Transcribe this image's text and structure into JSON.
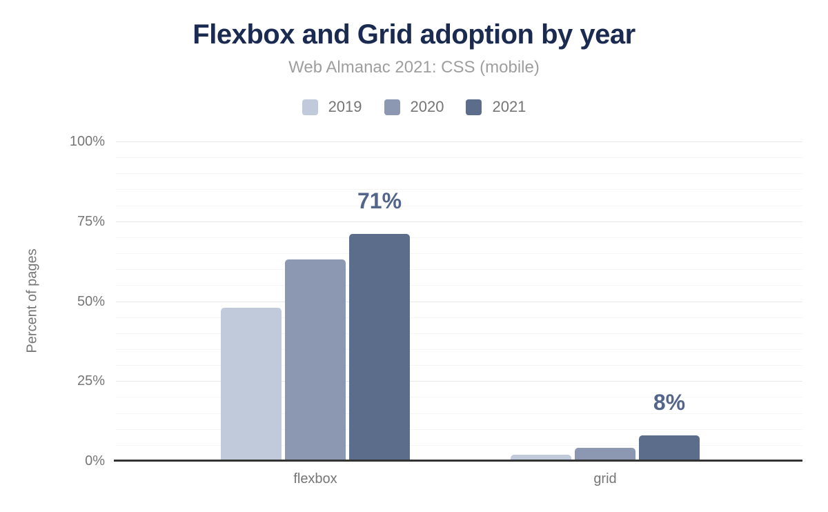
{
  "chart_data": {
    "type": "bar",
    "title": "Flexbox and Grid adoption by year",
    "subtitle": "Web Almanac 2021: CSS (mobile)",
    "ylabel": "Percent of pages",
    "xlabel": "",
    "categories": [
      "flexbox",
      "grid"
    ],
    "series": [
      {
        "name": "2019",
        "color": "#c1cadb",
        "values": [
          48,
          2
        ]
      },
      {
        "name": "2020",
        "color": "#8c98b2",
        "values": [
          63,
          4
        ]
      },
      {
        "name": "2021",
        "color": "#5c6d8c",
        "values": [
          71,
          8
        ]
      }
    ],
    "ylim": [
      0,
      100
    ],
    "yticks": [
      0,
      25,
      50,
      75,
      100
    ],
    "ytick_format": "{v}%",
    "grid": "horizontal minor lines every 5%, major lines every 25%",
    "legend_position": "top-center",
    "annotations": [
      {
        "category": "flexbox",
        "series": "2021",
        "text": "71%"
      },
      {
        "category": "grid",
        "series": "2021",
        "text": "8%"
      }
    ]
  },
  "colors": {
    "background": "#ffffff",
    "title": "#1b2a50",
    "subtitle": "#9e9e9e",
    "axis_text": "#757575",
    "annotation": "#53658a",
    "axis_line": "#333333",
    "grid_major": "#e8e8e8",
    "grid_minor": "#f5f5f5"
  }
}
